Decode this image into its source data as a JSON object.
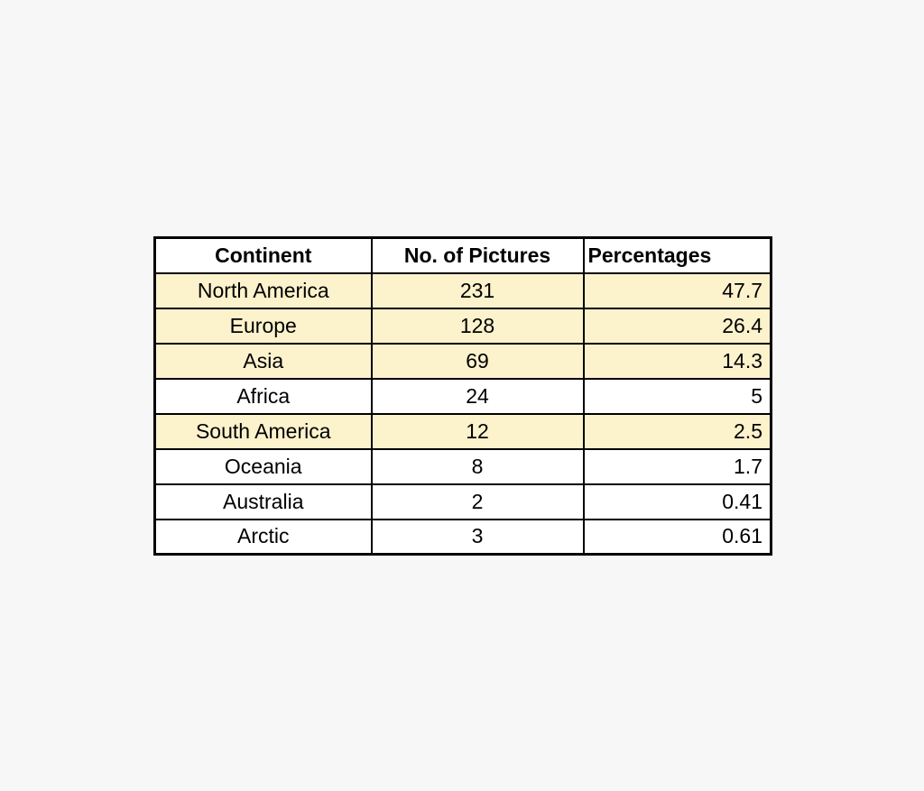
{
  "page": {
    "background_color": "#f7f7f7"
  },
  "table": {
    "headers": [
      "Continent",
      "No. of Pictures",
      "Percentages"
    ],
    "highlight_color": "#fcf2cc",
    "border_color": "#000000",
    "rows": [
      {
        "cells": [
          "North America",
          "231",
          "47.7"
        ],
        "highlight": true
      },
      {
        "cells": [
          "Europe",
          "128",
          "26.4"
        ],
        "highlight": true
      },
      {
        "cells": [
          "Asia",
          "69",
          "14.3"
        ],
        "highlight": true
      },
      {
        "cells": [
          "Africa",
          "24",
          "5"
        ],
        "highlight": false
      },
      {
        "cells": [
          "South America",
          "12",
          "2.5"
        ],
        "highlight": true
      },
      {
        "cells": [
          "Oceania",
          "8",
          "1.7"
        ],
        "highlight": false
      },
      {
        "cells": [
          "Australia",
          "2",
          "0.41"
        ],
        "highlight": false
      },
      {
        "cells": [
          "Arctic",
          "3",
          "0.61"
        ],
        "highlight": false
      }
    ]
  },
  "chart_data": {
    "type": "table",
    "title": "",
    "columns": [
      "Continent",
      "No. of Pictures",
      "Percentages"
    ],
    "rows": [
      {
        "continent": "North America",
        "no_of_pictures": 231,
        "percentage": 47.7,
        "highlighted": true
      },
      {
        "continent": "Europe",
        "no_of_pictures": 128,
        "percentage": 26.4,
        "highlighted": true
      },
      {
        "continent": "Asia",
        "no_of_pictures": 69,
        "percentage": 14.3,
        "highlighted": true
      },
      {
        "continent": "Africa",
        "no_of_pictures": 24,
        "percentage": 5,
        "highlighted": false
      },
      {
        "continent": "South America",
        "no_of_pictures": 12,
        "percentage": 2.5,
        "highlighted": true
      },
      {
        "continent": "Oceania",
        "no_of_pictures": 8,
        "percentage": 1.7,
        "highlighted": false
      },
      {
        "continent": "Australia",
        "no_of_pictures": 2,
        "percentage": 0.41,
        "highlighted": false
      },
      {
        "continent": "Arctic",
        "no_of_pictures": 3,
        "percentage": 0.61,
        "highlighted": false
      }
    ]
  }
}
